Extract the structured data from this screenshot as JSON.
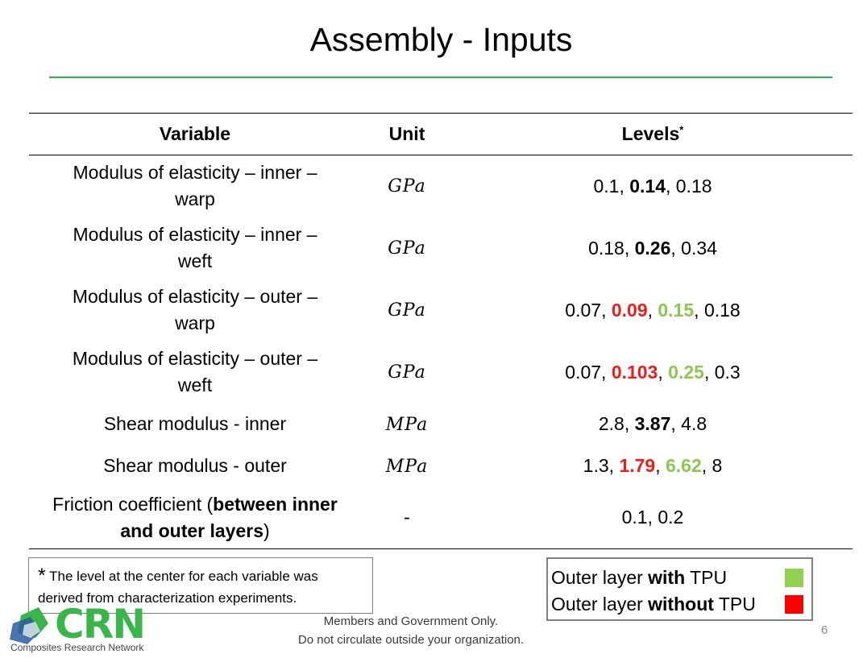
{
  "title": "Assembly - Inputs",
  "table": {
    "headers": {
      "variable": "Variable",
      "unit": "Unit",
      "levels": "Levels",
      "levels_mark": "*"
    },
    "rows": [
      {
        "var_lines": [
          "Modulus of elasticity – inner –",
          "warp"
        ],
        "unit": "GPa",
        "levels": [
          {
            "t": "0.1"
          },
          {
            "t": ", "
          },
          {
            "t": "0.14",
            "s": "b"
          },
          {
            "t": ", "
          },
          {
            "t": "0.18"
          }
        ]
      },
      {
        "var_lines": [
          "Modulus of elasticity – inner –",
          "weft"
        ],
        "unit": "GPa",
        "levels": [
          {
            "t": "0.18"
          },
          {
            "t": ", "
          },
          {
            "t": "0.26",
            "s": "b"
          },
          {
            "t": ", "
          },
          {
            "t": "0.34"
          }
        ]
      },
      {
        "var_lines": [
          "Modulus of elasticity – outer –",
          "warp"
        ],
        "unit": "GPa",
        "levels": [
          {
            "t": "0.07"
          },
          {
            "t": ", "
          },
          {
            "t": "0.09",
            "s": "red"
          },
          {
            "t": ", "
          },
          {
            "t": "0.15",
            "s": "green"
          },
          {
            "t": ", "
          },
          {
            "t": "0.18"
          }
        ]
      },
      {
        "var_lines": [
          "Modulus of elasticity – outer –",
          "weft"
        ],
        "unit": "GPa",
        "levels": [
          {
            "t": "0.07"
          },
          {
            "t": ", "
          },
          {
            "t": "0.103",
            "s": "red"
          },
          {
            "t": ", "
          },
          {
            "t": "0.25",
            "s": "green"
          },
          {
            "t": ", "
          },
          {
            "t": "0.3"
          }
        ]
      },
      {
        "var_lines": [
          "Shear modulus - inner"
        ],
        "unit": "MPa",
        "levels": [
          {
            "t": "2.8"
          },
          {
            "t": ", "
          },
          {
            "t": "3.87",
            "s": "b"
          },
          {
            "t": ", "
          },
          {
            "t": "4.8"
          }
        ]
      },
      {
        "var_lines": [
          "Shear modulus - outer"
        ],
        "unit": "MPa",
        "levels": [
          {
            "t": "1.3"
          },
          {
            "t": ", "
          },
          {
            "t": "1.79",
            "s": "red"
          },
          {
            "t": ", "
          },
          {
            "t": "6.62",
            "s": "green"
          },
          {
            "t": ", "
          },
          {
            "t": "8"
          }
        ]
      },
      {
        "var_parts": [
          {
            "t": "Friction coefficient ("
          },
          {
            "t": "between inner",
            "s": "b"
          },
          {
            "br": true
          },
          {
            "t": "and outer layers",
            "s": "b"
          },
          {
            "t": ")"
          }
        ],
        "unit": "-",
        "unit_plain": true,
        "levels": [
          {
            "t": "0.1, 0.2"
          }
        ]
      }
    ]
  },
  "note": {
    "star": "*",
    "text_line1": "The level at the center for each variable was",
    "text_line2": "derived from characterization experiments."
  },
  "legend": [
    {
      "pre": "Outer layer ",
      "bold": "with",
      "post": " TPU",
      "color": "#92d050"
    },
    {
      "pre": "Outer layer ",
      "bold": "without",
      "post": " TPU",
      "color": "#ff0000"
    }
  ],
  "footer": {
    "line1": "Members and Government Only.",
    "line2": "Do not circulate outside your organization."
  },
  "page_number": "6",
  "logo": {
    "word": "CRN",
    "subtitle": "Composites Research Network",
    "colors": {
      "green": "#3ab54a",
      "blue": "#2b5c9e"
    }
  },
  "colors": {
    "title_rule": "#27b24a",
    "red_level": "#ee1c1c",
    "green_level": "#8bc751"
  }
}
